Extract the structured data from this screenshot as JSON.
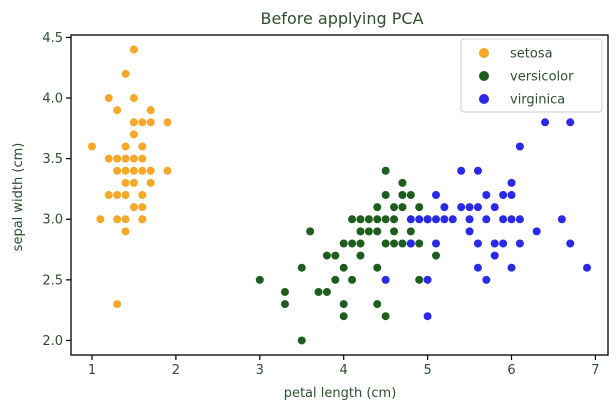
{
  "chart_data": {
    "type": "scatter",
    "title": "Before applying PCA",
    "xlabel": "petal length (cm)",
    "ylabel": "sepal width (cm)",
    "xlim": [
      0.75,
      7.15
    ],
    "ylim": [
      1.88,
      4.52
    ],
    "xticks": [
      1,
      2,
      3,
      4,
      5,
      6,
      7
    ],
    "xtick_labels": [
      "1",
      "2",
      "3",
      "4",
      "5",
      "6",
      "7"
    ],
    "yticks": [
      2.0,
      2.5,
      3.0,
      3.5,
      4.0,
      4.5
    ],
    "ytick_labels": [
      "2.0",
      "2.5",
      "3.0",
      "3.5",
      "4.0",
      "4.5"
    ],
    "grid": false,
    "legend_position": "top-right",
    "series": [
      {
        "name": "setosa",
        "color": "#f5a82a",
        "points": [
          [
            1.0,
            3.6
          ],
          [
            1.1,
            3.0
          ],
          [
            1.2,
            3.2
          ],
          [
            1.2,
            4.0
          ],
          [
            1.3,
            2.3
          ],
          [
            1.3,
            3.0
          ],
          [
            1.3,
            3.2
          ],
          [
            1.3,
            3.5
          ],
          [
            1.3,
            3.9
          ],
          [
            1.4,
            2.9
          ],
          [
            1.4,
            3.0
          ],
          [
            1.4,
            3.2
          ],
          [
            1.4,
            3.4
          ],
          [
            1.4,
            3.5
          ],
          [
            1.4,
            3.6
          ],
          [
            1.4,
            4.2
          ],
          [
            1.5,
            3.1
          ],
          [
            1.5,
            3.3
          ],
          [
            1.5,
            3.4
          ],
          [
            1.5,
            3.5
          ],
          [
            1.5,
            3.7
          ],
          [
            1.5,
            4.0
          ],
          [
            1.5,
            4.4
          ],
          [
            1.6,
            3.0
          ],
          [
            1.6,
            3.1
          ],
          [
            1.6,
            3.2
          ],
          [
            1.6,
            3.4
          ],
          [
            1.6,
            3.5
          ],
          [
            1.6,
            3.8
          ],
          [
            1.7,
            3.3
          ],
          [
            1.7,
            3.4
          ],
          [
            1.7,
            3.8
          ],
          [
            1.7,
            3.9
          ],
          [
            1.9,
            3.4
          ],
          [
            1.9,
            3.8
          ],
          [
            1.4,
            3.3
          ],
          [
            1.5,
            3.8
          ],
          [
            1.6,
            3.6
          ],
          [
            1.3,
            3.4
          ],
          [
            1.2,
            3.5
          ]
        ]
      },
      {
        "name": "versicolor",
        "color": "#1e5d1e",
        "points": [
          [
            3.0,
            2.5
          ],
          [
            3.3,
            2.3
          ],
          [
            3.3,
            2.4
          ],
          [
            3.5,
            2.0
          ],
          [
            3.5,
            2.6
          ],
          [
            3.6,
            2.9
          ],
          [
            3.7,
            2.4
          ],
          [
            3.8,
            2.4
          ],
          [
            3.8,
            2.7
          ],
          [
            3.9,
            2.5
          ],
          [
            3.9,
            2.7
          ],
          [
            4.0,
            2.2
          ],
          [
            4.0,
            2.3
          ],
          [
            4.0,
            2.6
          ],
          [
            4.0,
            2.8
          ],
          [
            4.1,
            2.8
          ],
          [
            4.1,
            3.0
          ],
          [
            4.2,
            2.7
          ],
          [
            4.2,
            2.9
          ],
          [
            4.2,
            3.0
          ],
          [
            4.3,
            2.9
          ],
          [
            4.4,
            2.3
          ],
          [
            4.4,
            2.6
          ],
          [
            4.4,
            2.9
          ],
          [
            4.4,
            3.1
          ],
          [
            4.5,
            2.2
          ],
          [
            4.5,
            2.8
          ],
          [
            4.5,
            3.0
          ],
          [
            4.5,
            3.2
          ],
          [
            4.5,
            3.4
          ],
          [
            4.6,
            2.8
          ],
          [
            4.6,
            2.9
          ],
          [
            4.6,
            3.1
          ],
          [
            4.7,
            2.8
          ],
          [
            4.7,
            3.1
          ],
          [
            4.7,
            3.2
          ],
          [
            4.7,
            3.3
          ],
          [
            4.8,
            2.8
          ],
          [
            4.8,
            3.2
          ],
          [
            4.9,
            2.5
          ],
          [
            4.9,
            3.1
          ],
          [
            5.0,
            3.0
          ],
          [
            5.1,
            2.7
          ],
          [
            4.3,
            3.0
          ],
          [
            4.6,
            3.0
          ],
          [
            4.8,
            2.9
          ],
          [
            4.1,
            2.5
          ],
          [
            4.9,
            2.8
          ],
          [
            4.4,
            3.0
          ],
          [
            4.2,
            2.8
          ]
        ]
      },
      {
        "name": "virginica",
        "color": "#2a2ae6",
        "points": [
          [
            4.5,
            2.5
          ],
          [
            4.8,
            3.0
          ],
          [
            4.9,
            3.0
          ],
          [
            5.0,
            2.2
          ],
          [
            5.0,
            2.5
          ],
          [
            5.0,
            3.0
          ],
          [
            5.1,
            3.2
          ],
          [
            5.1,
            3.0
          ],
          [
            5.1,
            2.8
          ],
          [
            5.2,
            3.0
          ],
          [
            5.3,
            3.0
          ],
          [
            5.4,
            3.4
          ],
          [
            5.5,
            3.1
          ],
          [
            5.5,
            2.9
          ],
          [
            5.6,
            3.1
          ],
          [
            5.6,
            3.4
          ],
          [
            5.6,
            2.8
          ],
          [
            5.6,
            2.6
          ],
          [
            5.7,
            3.0
          ],
          [
            5.7,
            3.2
          ],
          [
            5.7,
            2.5
          ],
          [
            5.8,
            3.1
          ],
          [
            5.8,
            2.8
          ],
          [
            5.9,
            3.0
          ],
          [
            5.9,
            3.2
          ],
          [
            5.9,
            2.8
          ],
          [
            6.0,
            3.3
          ],
          [
            6.0,
            3.0
          ],
          [
            6.0,
            3.2
          ],
          [
            6.1,
            3.6
          ],
          [
            6.1,
            2.8
          ],
          [
            6.1,
            3.0
          ],
          [
            6.3,
            2.9
          ],
          [
            6.4,
            3.8
          ],
          [
            6.6,
            3.0
          ],
          [
            6.7,
            3.8
          ],
          [
            6.7,
            2.8
          ],
          [
            6.9,
            2.6
          ],
          [
            5.0,
            3.0
          ],
          [
            5.2,
            3.1
          ],
          [
            5.4,
            3.1
          ],
          [
            5.8,
            2.7
          ],
          [
            6.0,
            2.6
          ],
          [
            5.5,
            3.0
          ],
          [
            4.8,
            2.8
          ]
        ]
      }
    ]
  }
}
